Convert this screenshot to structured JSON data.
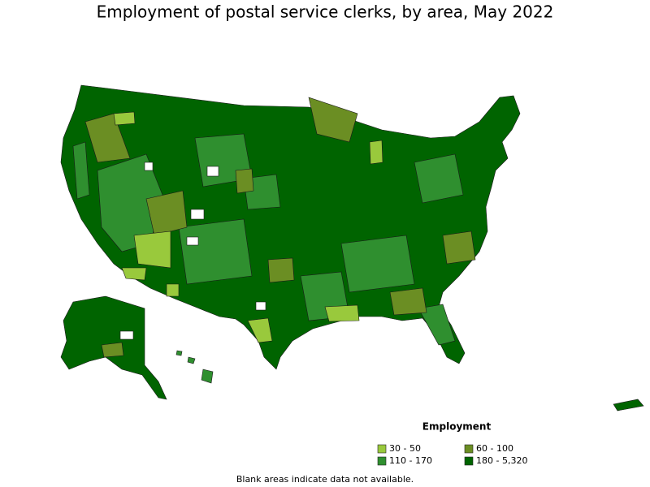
{
  "title": "Employment of postal service clerks, by area, May 2022",
  "legend": {
    "title": "Employment",
    "items": [
      {
        "label": "30 - 50",
        "color": "#99c93c"
      },
      {
        "label": "60 - 100",
        "color": "#6b8e23"
      },
      {
        "label": "110 - 170",
        "color": "#2f8f2f"
      },
      {
        "label": "180 - 5,320",
        "color": "#006400"
      }
    ]
  },
  "footnote": "Blank areas indicate data not available."
}
